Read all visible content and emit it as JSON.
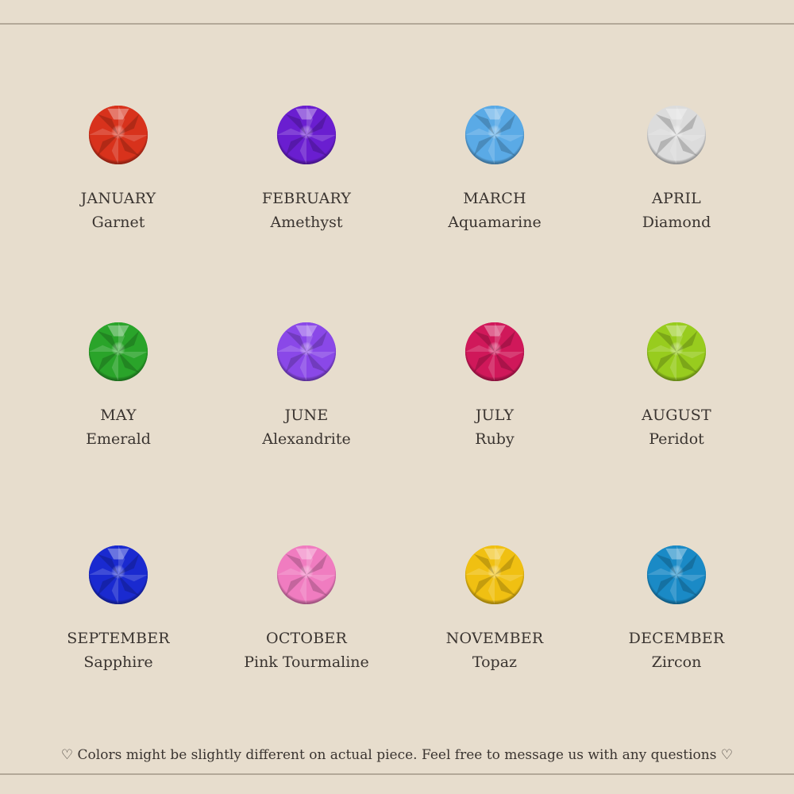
{
  "birthstones": [
    {
      "month": "JANUARY",
      "stone": "Garnet",
      "color": "#d8321c"
    },
    {
      "month": "FEBRUARY",
      "stone": "Amethyst",
      "color": "#6a1ed0"
    },
    {
      "month": "MARCH",
      "stone": "Aquamarine",
      "color": "#5aaae6"
    },
    {
      "month": "APRIL",
      "stone": "Diamond",
      "color": "#dcdcdc"
    },
    {
      "month": "MAY",
      "stone": "Emerald",
      "color": "#2aa42a"
    },
    {
      "month": "JUNE",
      "stone": "Alexandrite",
      "color": "#8a48e8"
    },
    {
      "month": "JULY",
      "stone": "Ruby",
      "color": "#d0185a"
    },
    {
      "month": "AUGUST",
      "stone": "Peridot",
      "color": "#98cc1e"
    },
    {
      "month": "SEPTEMBER",
      "stone": "Sapphire",
      "color": "#1a2ad0"
    },
    {
      "month": "OCTOBER",
      "stone": "Pink Tourmaline",
      "color": "#f07cc0"
    },
    {
      "month": "NOVEMBER",
      "stone": "Topaz",
      "color": "#f0c012"
    },
    {
      "month": "DECEMBER",
      "stone": "Zircon",
      "color": "#1a8ac6"
    }
  ],
  "footer_note": "♡ Colors might be slightly different on actual piece. Feel free to message us with any questions ♡"
}
